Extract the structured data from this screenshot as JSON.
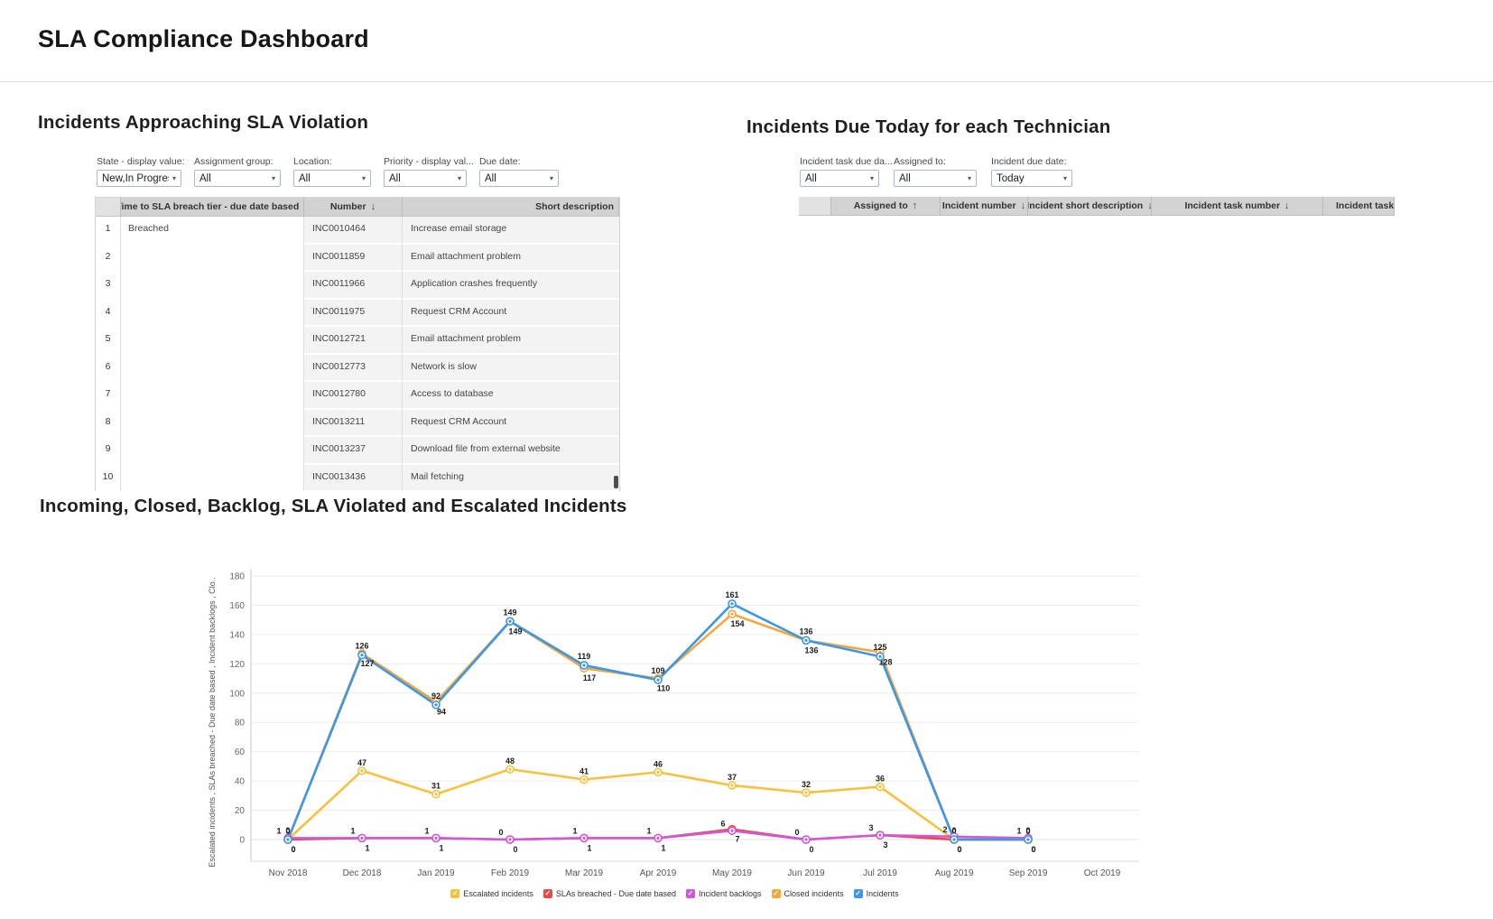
{
  "header": {
    "title": "SLA Compliance Dashboard"
  },
  "sections": {
    "sla_violation": {
      "title": "Incidents Approaching SLA Violation",
      "filters": [
        {
          "label": "State - display value:",
          "value": "New,In Progress"
        },
        {
          "label": "Assignment group:",
          "value": "All"
        },
        {
          "label": "Location:",
          "value": "All"
        },
        {
          "label": "Priority - display val...",
          "value": "All"
        },
        {
          "label": "Due date:",
          "value": "All"
        }
      ],
      "table": {
        "columns": [
          {
            "label": "Time to SLA breach tier - due date based",
            "sort": "down"
          },
          {
            "label": "Number",
            "sort": "down"
          },
          {
            "label": "Short description",
            "sort": ""
          }
        ],
        "group_value": "Breached",
        "rows": [
          {
            "n": "1",
            "number": "INC0010464",
            "desc": "Increase email storage"
          },
          {
            "n": "2",
            "number": "INC0011859",
            "desc": "Email attachment problem"
          },
          {
            "n": "3",
            "number": "INC0011966",
            "desc": "Application crashes frequently"
          },
          {
            "n": "4",
            "number": "INC0011975",
            "desc": "Request CRM Account"
          },
          {
            "n": "5",
            "number": "INC0012721",
            "desc": "Email attachment problem"
          },
          {
            "n": "6",
            "number": "INC0012773",
            "desc": "Network is slow"
          },
          {
            "n": "7",
            "number": "INC0012780",
            "desc": "Access to database"
          },
          {
            "n": "8",
            "number": "INC0013211",
            "desc": "Request CRM Account"
          },
          {
            "n": "9",
            "number": "INC0013237",
            "desc": "Download file from external website"
          },
          {
            "n": "10",
            "number": "INC0013436",
            "desc": "Mail fetching"
          }
        ]
      }
    },
    "due_today": {
      "title": "Incidents Due Today for each Technician",
      "filters": [
        {
          "label": "Incident task due da...",
          "value": "All"
        },
        {
          "label": "Assigned to:",
          "value": "All"
        },
        {
          "label": "Incident due date:",
          "value": "Today"
        }
      ],
      "table": {
        "columns": [
          {
            "label": "Assigned to",
            "sort": "up"
          },
          {
            "label": "Incident number",
            "sort": "down"
          },
          {
            "label": "Incident short description",
            "sort": "down"
          },
          {
            "label": "Incident task number",
            "sort": "down"
          },
          {
            "label": "Incident task",
            "sort": ""
          }
        ]
      }
    },
    "trend": {
      "title": "Incoming, Closed, Backlog, SLA Violated and Escalated Incidents"
    }
  },
  "chart_data": {
    "type": "line",
    "title": "Incoming, Closed, Backlog, SLA Violated and Escalated Incidents",
    "categories": [
      "Nov 2018",
      "Dec 2018",
      "Jan 2019",
      "Feb 2019",
      "Mar 2019",
      "Apr 2019",
      "May 2019",
      "Jun 2019",
      "Jul 2019",
      "Aug 2019",
      "Sep 2019",
      "Oct 2019"
    ],
    "ylabel": "Escalated incidents , SLAs breached - Due date based , Incident backlogs , Clo..",
    "ylim": [
      0,
      180
    ],
    "ytick_step": 20,
    "grid": true,
    "legend_position": "bottom",
    "series": [
      {
        "name": "Escalated incidents",
        "color": "#F7C13D",
        "label_dx": 0,
        "label_dy": -6,
        "values": [
          0,
          47,
          31,
          48,
          41,
          46,
          37,
          32,
          36,
          0,
          0,
          null
        ]
      },
      {
        "name": "SLAs breached - Due date based",
        "color": "#ED4848",
        "label_dx": 6,
        "label_dy": 14,
        "values": [
          0,
          1,
          1,
          0,
          1,
          1,
          7,
          0,
          3,
          0,
          0,
          null
        ]
      },
      {
        "name": "Incident backlogs",
        "color": "#CE58D8",
        "label_dx": -10,
        "label_dy": -5,
        "values": [
          1,
          1,
          1,
          0,
          1,
          1,
          6,
          0,
          3,
          2,
          1,
          null
        ]
      },
      {
        "name": "Closed incidents",
        "color": "#F5A73B",
        "label_dx": 6,
        "label_dy": 14,
        "values": [
          0,
          127,
          94,
          149,
          117,
          110,
          154,
          136,
          128,
          0,
          0,
          null
        ]
      },
      {
        "name": "Incidents",
        "color": "#3D96E8",
        "label_dx": 0,
        "label_dy": -7,
        "values": [
          0,
          126,
          92,
          149,
          119,
          109,
          161,
          136,
          125,
          0,
          0,
          null
        ]
      }
    ]
  }
}
